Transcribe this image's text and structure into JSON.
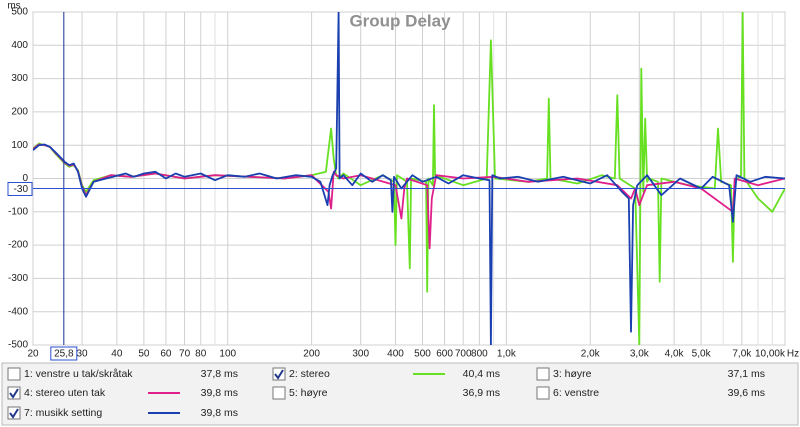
{
  "chart_data": {
    "type": "line",
    "title": "Group Delay",
    "y_unit": "ms",
    "x_unit": "Hz",
    "xscale": "log",
    "xlim": [
      20,
      10000
    ],
    "ylim": [
      -500,
      500
    ],
    "yticks": [
      -500,
      -400,
      -300,
      -200,
      -100,
      0,
      100,
      200,
      300,
      400,
      500
    ],
    "xticks": [
      20,
      30,
      40,
      50,
      60,
      70,
      80,
      100,
      200,
      300,
      400,
      500,
      600,
      700,
      800,
      {
        "value": 1000,
        "label": "1,0k"
      },
      {
        "value": 2000,
        "label": "2,0k"
      },
      {
        "value": 3000,
        "label": "3,0k"
      },
      {
        "value": 4000,
        "label": "4,0k"
      },
      {
        "value": 5000,
        "label": "5,0k"
      },
      {
        "value": 7000,
        "label": "7,0k"
      },
      {
        "value": 10000,
        "label": "10,00k"
      }
    ],
    "xminor": [
      90,
      900,
      6000,
      8000,
      9000
    ],
    "grid": true,
    "cursor": {
      "x": {
        "value": 25.8,
        "label": "25,8"
      },
      "y": -30
    },
    "series": [
      {
        "name": "1: venstre u tak/skråtak",
        "readout": "37,8 ms",
        "checked": false,
        "color": "#f0a040"
      },
      {
        "name": "2: stereo",
        "readout": "40,4 ms",
        "checked": true,
        "color": "#66e020",
        "x": [
          20,
          21,
          22,
          23,
          24,
          26,
          27,
          28,
          29,
          30,
          31,
          33,
          38,
          45,
          55,
          70,
          90,
          120,
          160,
          200,
          225,
          235,
          240,
          245,
          250,
          260,
          300,
          360,
          395,
          400,
          405,
          440,
          450,
          455,
          515,
          520,
          525,
          545,
          550,
          555,
          700,
          850,
          880,
          910,
          1200,
          1400,
          1420,
          1440,
          1800,
          2200,
          2450,
          2500,
          2550,
          2900,
          3000,
          3050,
          3100,
          3150,
          3200,
          3250,
          3500,
          3550,
          3600,
          4500,
          5600,
          5750,
          5900,
          6400,
          6500,
          6600,
          6950,
          7050,
          7150,
          8000,
          9000,
          10000
        ],
        "values": [
          90,
          105,
          100,
          95,
          75,
          45,
          35,
          40,
          25,
          -20,
          -40,
          -5,
          10,
          5,
          15,
          0,
          10,
          5,
          0,
          10,
          20,
          150,
          60,
          10,
          0,
          15,
          -20,
          10,
          -10,
          -200,
          10,
          -10,
          -270,
          0,
          -10,
          -340,
          0,
          -20,
          220,
          10,
          -20,
          0,
          415,
          0,
          -10,
          0,
          240,
          0,
          -15,
          10,
          0,
          250,
          0,
          -30,
          -500,
          330,
          -40,
          180,
          -10,
          0,
          -10,
          -310,
          0,
          -20,
          -30,
          150,
          -10,
          -20,
          -250,
          -10,
          10,
          500,
          0,
          -60,
          -100,
          -30
        ]
      },
      {
        "name": "3: høyre",
        "readout": "37,1 ms",
        "checked": false,
        "color": "#1a4fc4"
      },
      {
        "name": "4: stereo uten tak",
        "readout": "39,8 ms",
        "checked": true,
        "color": "#e0208a",
        "x": [
          20,
          21,
          22,
          23,
          24,
          26,
          27,
          28,
          29,
          30,
          31,
          33,
          38,
          45,
          55,
          70,
          90,
          120,
          160,
          200,
          230,
          235,
          240,
          245,
          260,
          300,
          400,
          420,
          430,
          440,
          520,
          530,
          540,
          560,
          700,
          900,
          1200,
          1800,
          2500,
          2800,
          2900,
          3000,
          3200,
          4000,
          5000,
          6500,
          6600,
          8000,
          10000
        ],
        "values": [
          88,
          102,
          100,
          95,
          78,
          48,
          38,
          42,
          22,
          -25,
          -50,
          -10,
          10,
          5,
          15,
          0,
          10,
          5,
          0,
          10,
          -40,
          -90,
          20,
          10,
          0,
          10,
          -20,
          -120,
          -30,
          0,
          -20,
          -210,
          -60,
          10,
          0,
          5,
          -10,
          0,
          -20,
          -60,
          -30,
          -80,
          -20,
          -10,
          -30,
          -100,
          0,
          -20,
          0
        ]
      },
      {
        "name": "5: høyre",
        "readout": "36,9 ms",
        "checked": false,
        "color": "#3399cc"
      },
      {
        "name": "6: venstre",
        "readout": "39,6 ms",
        "checked": false,
        "color": "#999933"
      },
      {
        "name": "7: musikk setting",
        "readout": "39,8 ms",
        "checked": true,
        "color": "#1a3fb0",
        "x": [
          20,
          21,
          22,
          23,
          24,
          26,
          27,
          28,
          29,
          30,
          31,
          33,
          43,
          46,
          50,
          55,
          60,
          65,
          70,
          80,
          90,
          100,
          115,
          130,
          150,
          175,
          200,
          215,
          228,
          232,
          238,
          245,
          250,
          252,
          260,
          280,
          300,
          330,
          360,
          385,
          390,
          395,
          420,
          460,
          500,
          560,
          620,
          700,
          800,
          870,
          880,
          890,
          950,
          1100,
          1300,
          1600,
          2000,
          2300,
          2600,
          2750,
          2800,
          2850,
          2950,
          3200,
          3600,
          4200,
          5000,
          5500,
          6300,
          6500,
          6700,
          7500,
          8500,
          10000
        ],
        "values": [
          85,
          100,
          102,
          95,
          80,
          50,
          40,
          45,
          20,
          -30,
          -55,
          -10,
          15,
          5,
          15,
          20,
          0,
          15,
          5,
          15,
          -5,
          10,
          5,
          15,
          0,
          10,
          5,
          -10,
          -80,
          -20,
          10,
          30,
          500,
          0,
          10,
          -20,
          15,
          -10,
          10,
          -5,
          -100,
          5,
          -30,
          10,
          -10,
          5,
          -15,
          10,
          0,
          -5,
          -500,
          10,
          0,
          5,
          -10,
          5,
          -15,
          10,
          -40,
          -60,
          -460,
          -80,
          -20,
          10,
          -50,
          0,
          -30,
          5,
          -20,
          -130,
          10,
          -10,
          5,
          0
        ]
      }
    ]
  }
}
